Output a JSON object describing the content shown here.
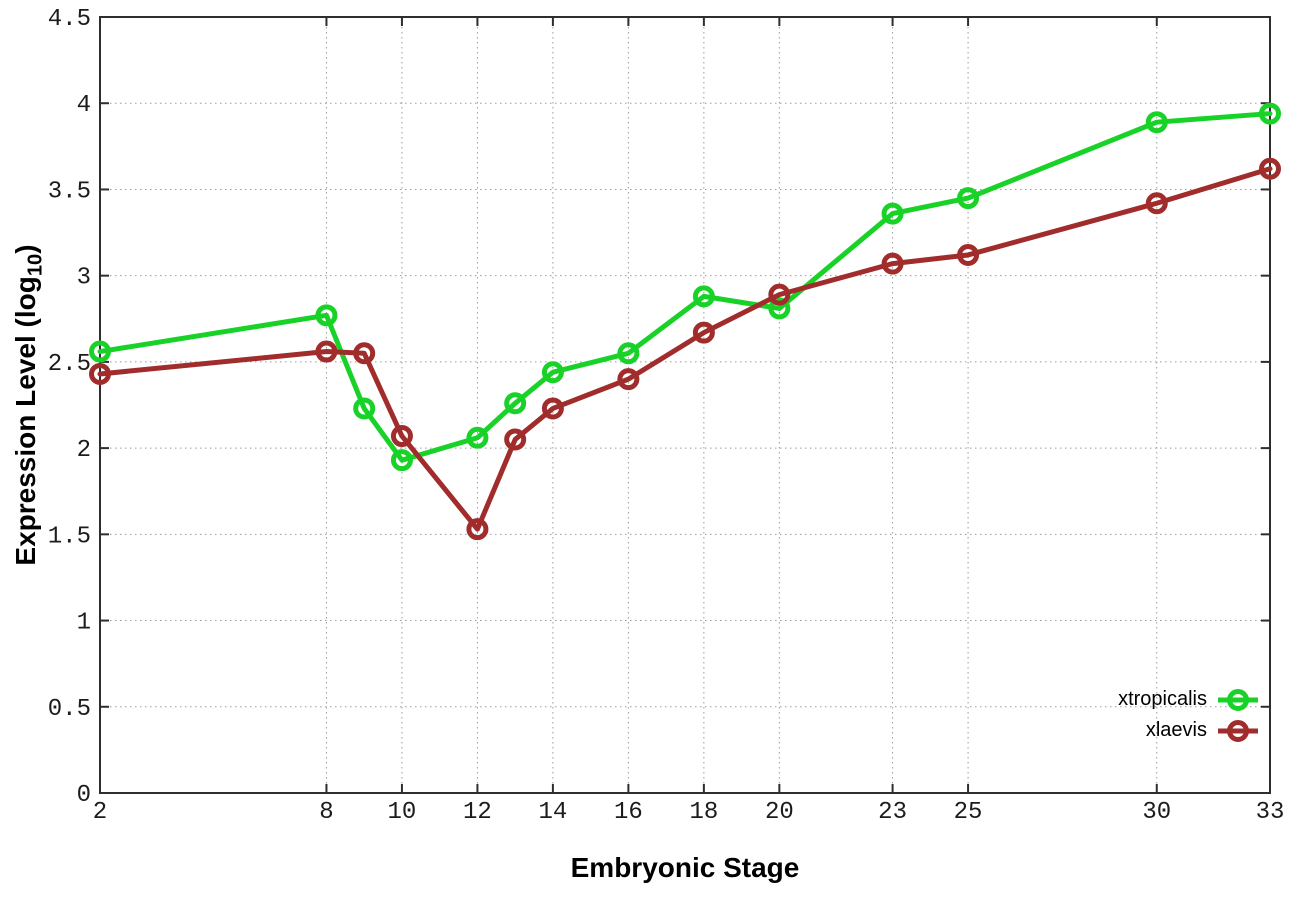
{
  "chart_data": {
    "type": "line",
    "title": "",
    "xlabel": "Embryonic Stage",
    "ylabel": "Expression Level (log10)",
    "ylabel_parts": {
      "prefix": "Expression Level (log",
      "sub": "10",
      "suffix": ")"
    },
    "x": [
      2,
      8,
      9,
      10,
      12,
      13,
      14,
      16,
      18,
      20,
      23,
      25,
      30,
      33
    ],
    "series": [
      {
        "name": "xtropicalis",
        "color": "#19d228",
        "values": [
          2.56,
          2.77,
          2.23,
          1.93,
          2.06,
          2.26,
          2.44,
          2.55,
          2.88,
          2.81,
          3.36,
          3.45,
          3.89,
          3.94
        ]
      },
      {
        "name": "xlaevis",
        "color": "#a12c2c",
        "values": [
          2.43,
          2.56,
          2.55,
          2.07,
          1.53,
          2.05,
          2.23,
          2.4,
          2.67,
          2.89,
          3.07,
          3.12,
          3.42,
          3.62
        ]
      }
    ],
    "xlim": [
      2,
      33
    ],
    "ylim": [
      0,
      4.5
    ],
    "xticks": [
      2,
      8,
      10,
      12,
      14,
      16,
      18,
      20,
      23,
      25,
      30,
      33
    ],
    "yticks": [
      0,
      0.5,
      1,
      1.5,
      2,
      2.5,
      3,
      3.5,
      4,
      4.5
    ],
    "ytick_labels": [
      "0",
      "0.5",
      "1",
      "1.5",
      "2",
      "2.5",
      "3",
      "3.5",
      "4",
      "4.5"
    ],
    "grid": true,
    "grid_style": "dotted",
    "legend_position": "bottom-right-inside",
    "marker": "open-circle",
    "line_width": 5,
    "background": "#ffffff",
    "border_color": "#2e2e2e",
    "grid_color": "#9b9b9b"
  }
}
